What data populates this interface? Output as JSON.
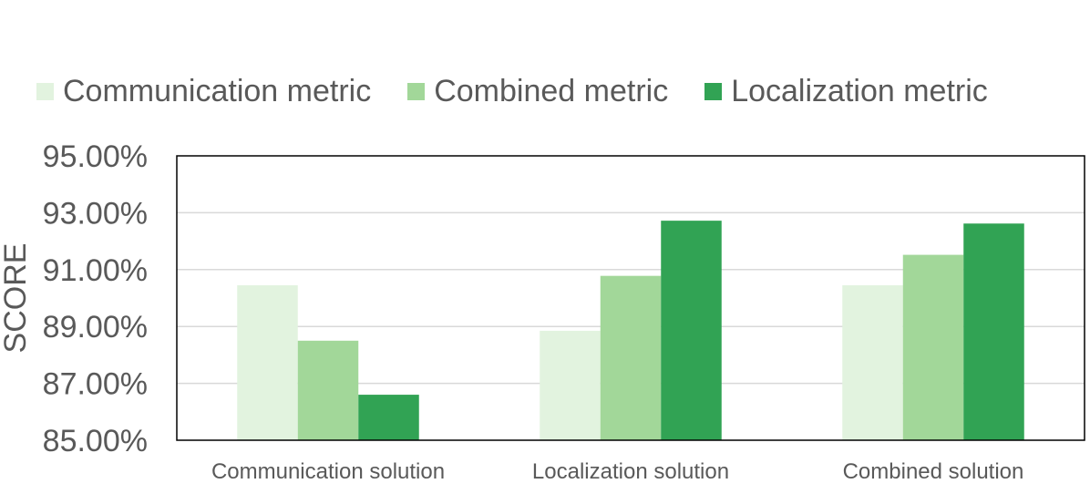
{
  "chart_data": {
    "type": "bar",
    "title": "",
    "xlabel": "",
    "ylabel": "SCORE",
    "categories": [
      "Communication solution",
      "Localization solution",
      "Combined solution"
    ],
    "series": [
      {
        "name": "Communication metric",
        "color": "#e2f3df",
        "values": [
          90.45,
          88.85,
          90.45
        ]
      },
      {
        "name": "Combined metric",
        "color": "#a2d799",
        "values": [
          88.5,
          90.78,
          91.52
        ]
      },
      {
        "name": "Localization metric",
        "color": "#31a354",
        "values": [
          86.6,
          92.72,
          92.62
        ]
      }
    ],
    "ylim": [
      85,
      95
    ],
    "yticks": [
      "85.00%",
      "87.00%",
      "89.00%",
      "91.00%",
      "93.00%",
      "95.00%"
    ],
    "ytick_values": [
      85,
      87,
      89,
      91,
      93,
      95
    ],
    "grid": true,
    "legend_position": "top"
  }
}
